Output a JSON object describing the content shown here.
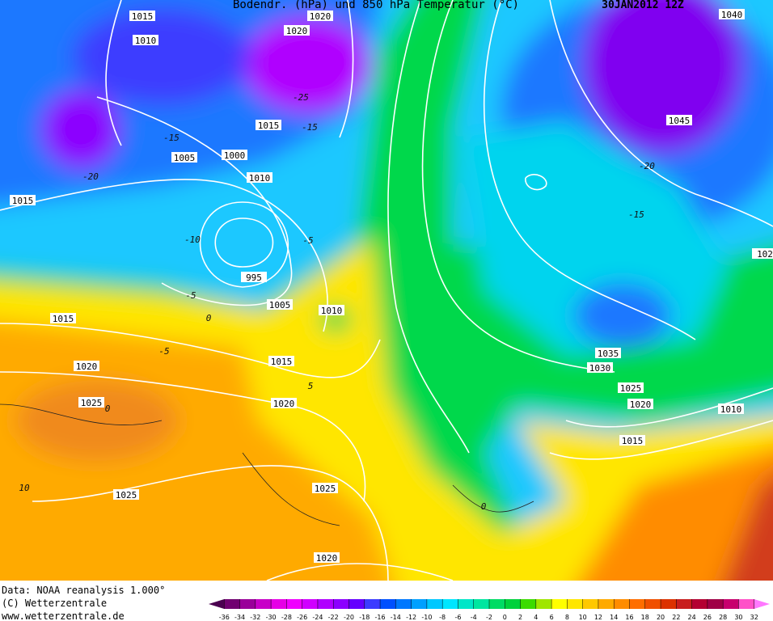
{
  "header": {
    "title": "Bodendr. (hPa)  und 850 hPa Temperatur (°C)",
    "date": "30JAN2012 12Z"
  },
  "isobar_labels": [
    "1015",
    "1020",
    "1020",
    "1010",
    "1015",
    "1005",
    "1000",
    "1010",
    "1015",
    "995",
    "1005",
    "1010",
    "1015",
    "1015",
    "1020",
    "1025",
    "1020",
    "1025",
    "1025",
    "1020",
    "1045",
    "1040",
    "1035",
    "1030",
    "1025",
    "1020",
    "1015",
    "1010",
    "102"
  ],
  "temperature_labels": [
    "-25",
    "-15",
    "-20",
    "-10",
    "-5",
    "-5",
    "0",
    "-5",
    "5",
    "10",
    "-15",
    "-20",
    "-15",
    "0",
    "0"
  ],
  "footer": {
    "source": "Data: NOAA reanalysis 1.000°",
    "copyright": "(C) Wetterzentrale",
    "website": "www.wetterzentrale.de"
  },
  "legend": {
    "ticks": [
      -36,
      -34,
      -32,
      -30,
      -28,
      -26,
      -24,
      -22,
      -20,
      -18,
      -16,
      -14,
      -12,
      -10,
      -8,
      -6,
      -4,
      -2,
      0,
      2,
      4,
      6,
      8,
      10,
      12,
      14,
      16,
      18,
      20,
      22,
      24,
      26,
      28,
      30,
      32
    ],
    "colors": [
      "#4b0050",
      "#700070",
      "#9a009a",
      "#c800c8",
      "#e600e6",
      "#f000ff",
      "#d000ff",
      "#b000ff",
      "#8c00ff",
      "#6400ff",
      "#3c3cff",
      "#0050ff",
      "#0078ff",
      "#00a0ff",
      "#00c8ff",
      "#00e6ff",
      "#00e6c8",
      "#00e6a0",
      "#00dc64",
      "#00d23c",
      "#3cdc00",
      "#a0e600",
      "#ffff00",
      "#ffe600",
      "#ffc800",
      "#ffaa00",
      "#ff8c00",
      "#ff6e00",
      "#f05000",
      "#dc3200",
      "#c81e1e",
      "#b40032",
      "#a00046",
      "#c8006e",
      "#ff50c8",
      "#ff78ff"
    ]
  }
}
